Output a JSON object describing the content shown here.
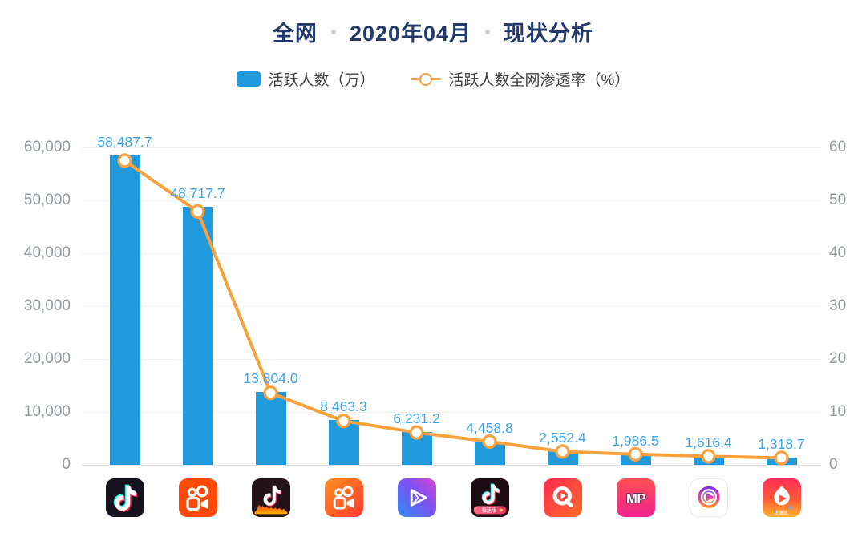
{
  "title": {
    "part1": "全网",
    "part2": "2020年04月",
    "part3": "现状分析"
  },
  "legend": {
    "bar_label": "活跃人数（万）",
    "line_label": "活跃人数全网渗透率（%）"
  },
  "colors": {
    "bar": "#1E9ADD",
    "bar_label": "#3FA3E8",
    "line": "#F9A13C",
    "title": "#22396B",
    "axis_text": "#95989E",
    "grid": "#F1F1F5",
    "baseline": "#DDDDE3"
  },
  "chart_data": {
    "type": "bar",
    "title": "全网 2020年04月 现状分析",
    "categories": [
      "douyin",
      "kuaishou",
      "douyin-huoshan",
      "kuaishou-express",
      "weishi",
      "douyin-express",
      "quanmin-video",
      "meipai",
      "circle-play-video",
      "huoshan-express"
    ],
    "series": [
      {
        "name": "活跃人数（万）",
        "type": "bar",
        "values": [
          58487.7,
          48717.7,
          13804.0,
          8463.3,
          6231.2,
          4458.8,
          2552.4,
          1986.5,
          1616.4,
          1318.7
        ],
        "labels": [
          "58,487.7",
          "48,717.7",
          "13,804.0",
          "8,463.3",
          "6,231.2",
          "4,458.8",
          "2,552.4",
          "1,986.5",
          "1,616.4",
          "1,318.7"
        ]
      },
      {
        "name": "活跃人数全网渗透率（%）",
        "type": "line",
        "values": [
          57.5,
          47.9,
          13.6,
          8.3,
          6.1,
          4.4,
          2.5,
          2.0,
          1.6,
          1.3
        ]
      }
    ],
    "left_axis": {
      "label": "活跃人数（万）",
      "min": 0,
      "max": 60000,
      "ticks": [
        "0",
        "10,000",
        "20,000",
        "30,000",
        "40,000",
        "50,000",
        "60,000"
      ]
    },
    "right_axis": {
      "label": "活跃人数全网渗透率（%）",
      "min": 0,
      "max": 60,
      "ticks": [
        "0",
        "10",
        "20",
        "30",
        "40",
        "50",
        "60"
      ]
    },
    "grid": true,
    "legend_position": "top",
    "icon_badges": {
      "douyin-express": "极速版",
      "huoshan-express": "极速版"
    }
  }
}
